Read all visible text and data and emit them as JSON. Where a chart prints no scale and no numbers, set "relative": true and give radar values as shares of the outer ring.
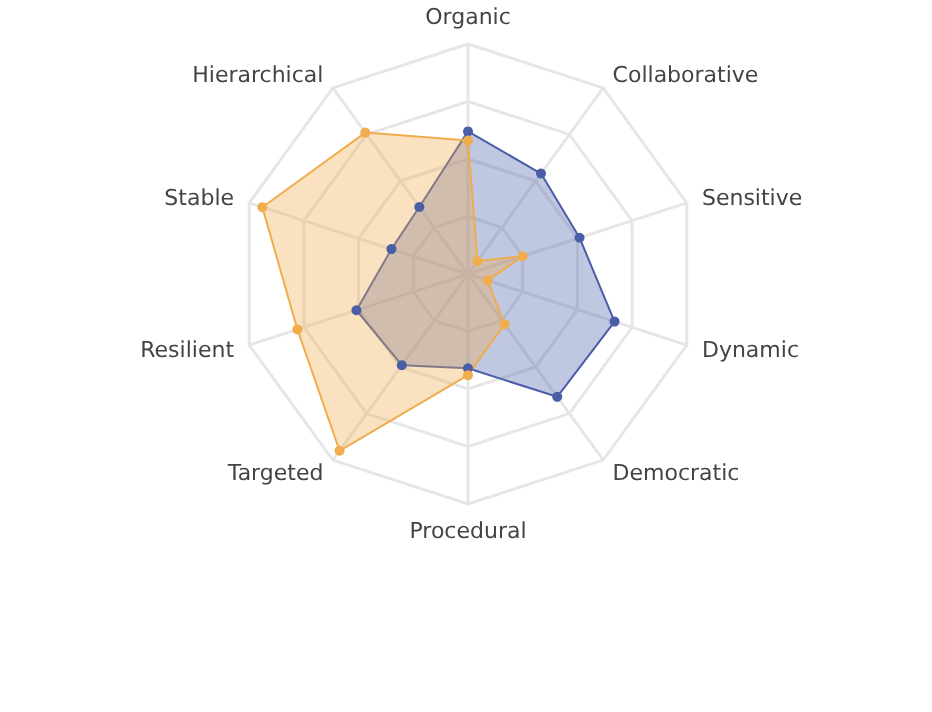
{
  "chart_data": {
    "type": "radar",
    "relative": true,
    "categories": [
      "Organic",
      "Collaborative",
      "Sensitive",
      "Dynamic",
      "Democratic",
      "Procedural",
      "Targeted",
      "Resilient",
      "Stable",
      "Hierarchical"
    ],
    "series": [
      {
        "color": "#4a5ea8",
        "values": [
          0.62,
          0.54,
          0.51,
          0.67,
          0.66,
          0.41,
          0.49,
          0.51,
          0.35,
          0.36
        ]
      },
      {
        "color": "#f0ad4e",
        "values": [
          0.58,
          0.07,
          0.25,
          0.09,
          0.27,
          0.44,
          0.95,
          0.78,
          0.94,
          0.76
        ]
      }
    ],
    "marker": "circle"
  }
}
